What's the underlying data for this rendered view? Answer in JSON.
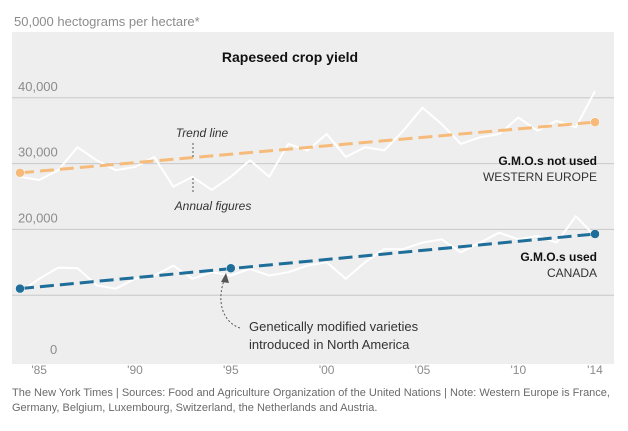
{
  "chart_data": {
    "type": "line",
    "title": "Rapeseed crop yield",
    "ylabel": "50,000 hectograms per hectare*",
    "xlabel": "",
    "ylim": [
      0,
      50000
    ],
    "xlim": [
      1984,
      2014
    ],
    "yticks": [
      {
        "value": 0,
        "label": "0"
      },
      {
        "value": 10000,
        "label": ""
      },
      {
        "value": 20000,
        "label": "20,000"
      },
      {
        "value": 30000,
        "label": "30,000"
      },
      {
        "value": 40000,
        "label": "40,000"
      }
    ],
    "xticks": [
      {
        "value": 1985,
        "label": "'85"
      },
      {
        "value": 1990,
        "label": "'90"
      },
      {
        "value": 1995,
        "label": "'95"
      },
      {
        "value": 2000,
        "label": "'00"
      },
      {
        "value": 2005,
        "label": "'05"
      },
      {
        "value": 2010,
        "label": "'10"
      },
      {
        "value": 2014,
        "label": "'14"
      }
    ],
    "annual_years": [
      1984,
      1985,
      1986,
      1987,
      1988,
      1989,
      1990,
      1991,
      1992,
      1993,
      1994,
      1995,
      1996,
      1997,
      1998,
      1999,
      2000,
      2001,
      2002,
      2003,
      2004,
      2005,
      2006,
      2007,
      2008,
      2009,
      2010,
      2011,
      2012,
      2013,
      2014
    ],
    "series": [
      {
        "name": "Western Europe annual",
        "kind": "annual",
        "values": [
          28000,
          27500,
          29000,
          32500,
          30500,
          29000,
          29500,
          31000,
          26500,
          28000,
          26000,
          28000,
          30500,
          28000,
          33000,
          32000,
          34500,
          31000,
          32500,
          32000,
          35000,
          38500,
          36000,
          33000,
          34000,
          34500,
          37000,
          35000,
          36500,
          35500,
          41000
        ]
      },
      {
        "name": "Western Europe trend",
        "kind": "trend",
        "color": "#f6bb7a",
        "x": [
          1984,
          2014
        ],
        "values": [
          28600,
          36300
        ]
      },
      {
        "name": "Canada annual",
        "kind": "annual",
        "values": [
          10500,
          12500,
          14200,
          14100,
          11500,
          11000,
          12500,
          13000,
          14500,
          12500,
          13500,
          13000,
          14000,
          13000,
          13500,
          14500,
          15000,
          12500,
          15000,
          17000,
          17000,
          18000,
          18500,
          16500,
          18000,
          19500,
          18500,
          19000,
          18000,
          22000,
          19000
        ]
      },
      {
        "name": "Canada trend",
        "kind": "trend",
        "color": "#1f6e99",
        "x": [
          1984,
          2014
        ],
        "values": [
          11000,
          19300
        ]
      }
    ],
    "markers": [
      {
        "series": "Western Europe trend",
        "x": 1984,
        "y": 28600,
        "color": "#f6bb7a"
      },
      {
        "series": "Western Europe trend",
        "x": 2014,
        "y": 36300,
        "color": "#f6bb7a"
      },
      {
        "series": "Canada trend",
        "x": 1984,
        "y": 11000,
        "color": "#1f6e99"
      },
      {
        "series": "Canada trend",
        "x": 1995,
        "y": 14100,
        "color": "#1f6e99"
      },
      {
        "series": "Canada trend",
        "x": 2014,
        "y": 19300,
        "color": "#1f6e99"
      }
    ],
    "annotations": {
      "trend_line": "Trend line",
      "annual_figures": "Annual figures",
      "gmo_note_line1": "Genetically modified varieties",
      "gmo_note_line2": "introduced in North America"
    },
    "labels": {
      "europe_title": "G.M.O.s not used",
      "europe_region": "WESTERN EUROPE",
      "canada_title": "G.M.O.s used",
      "canada_region": "CANADA"
    }
  },
  "colors": {
    "plot_bg": "#eeeeee",
    "grid": "#c8c8c8",
    "annual_line": "#ffffff",
    "europe": "#f6bb7a",
    "canada": "#1f6e99"
  },
  "footer": "The New York Times | Sources: Food and Agriculture Organization of the United Nations | Note: Western Europe is France, Germany, Belgium, Luxembourg, Switzerland, the Netherlands and Austria."
}
